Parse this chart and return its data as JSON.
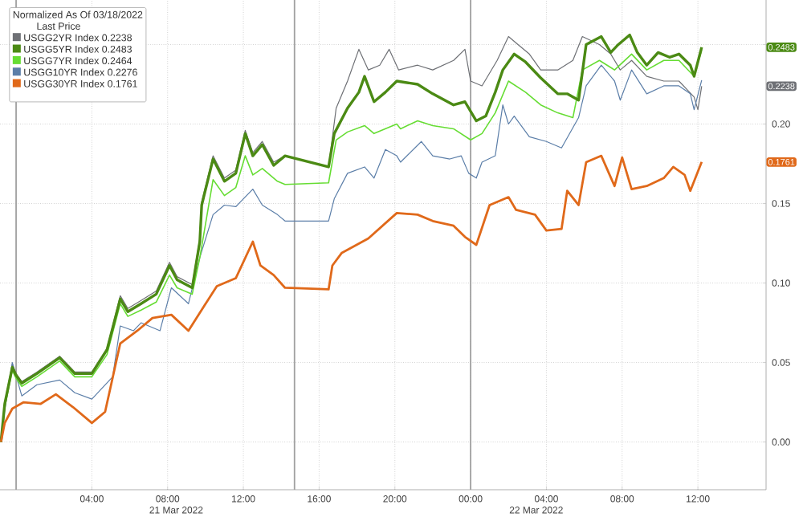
{
  "chart_data": {
    "type": "line",
    "legend_title": "Normalized As Of 03/18/2022",
    "annotations": [
      "Last Price",
      "21 Mar 2022",
      "22 Mar 2022",
      "0.2483",
      "0.2238",
      "0.1761"
    ],
    "series": [
      {
        "name": "USGG2YR Index  0.2238",
        "color": "#6e7075",
        "x": [
          "2022-03-20T23:12",
          "2022-03-20T23:24",
          "2022-03-20T23:48",
          "2022-03-21T00:00",
          "2022-03-21T00:18",
          "2022-03-21T01:06",
          "2022-03-21T02:18",
          "2022-03-21T03:06",
          "2022-03-21T04:00",
          "2022-03-21T04:48",
          "2022-03-21T05:30",
          "2022-03-21T05:54",
          "2022-03-21T06:36",
          "2022-03-21T07:24",
          "2022-03-21T08:06",
          "2022-03-21T08:30",
          "2022-03-21T09:18",
          "2022-03-21T09:42",
          "2022-03-21T09:48",
          "2022-03-21T10:24",
          "2022-03-21T11:00",
          "2022-03-21T11:36",
          "2022-03-21T12:06",
          "2022-03-21T12:30",
          "2022-03-21T13:00",
          "2022-03-21T13:36",
          "2022-03-21T14:12",
          "2022-03-21T16:30",
          "2022-03-21T16:54",
          "2022-03-21T17:30",
          "2022-03-21T18:06",
          "2022-03-21T18:36",
          "2022-03-21T19:12",
          "2022-03-21T19:42",
          "2022-03-21T20:12",
          "2022-03-21T21:12",
          "2022-03-21T22:00",
          "2022-03-21T23:06",
          "2022-03-21T23:42",
          "2022-03-22T00:00",
          "2022-03-22T00:36",
          "2022-03-22T01:24",
          "2022-03-22T02:00",
          "2022-03-22T02:30",
          "2022-03-22T03:06",
          "2022-03-22T03:42",
          "2022-03-22T04:36",
          "2022-03-22T05:24",
          "2022-03-22T05:54",
          "2022-03-22T06:48",
          "2022-03-22T07:24",
          "2022-03-22T07:54",
          "2022-03-22T08:30",
          "2022-03-22T09:18",
          "2022-03-22T10:12",
          "2022-03-22T11:00",
          "2022-03-22T11:48",
          "2022-03-22T12:00",
          "2022-03-22T12:12"
        ],
        "values": [
          0.0,
          0.025,
          0.049,
          0.043,
          0.038,
          0.044,
          0.054,
          0.044,
          0.044,
          0.059,
          0.092,
          0.084,
          0.089,
          0.095,
          0.113,
          0.104,
          0.099,
          0.128,
          0.151,
          0.18,
          0.166,
          0.171,
          0.196,
          0.182,
          0.189,
          0.176,
          0.18,
          0.173,
          0.21,
          0.227,
          0.247,
          0.234,
          0.237,
          0.247,
          0.234,
          0.237,
          0.234,
          0.24,
          0.247,
          0.227,
          0.224,
          0.24,
          0.255,
          0.25,
          0.244,
          0.234,
          0.234,
          0.24,
          0.255,
          0.25,
          0.244,
          0.234,
          0.24,
          0.23,
          0.227,
          0.227,
          0.217,
          0.209,
          0.2238
        ]
      },
      {
        "name": "USGG5YR Index  0.2483",
        "color": "#4b8a14",
        "x": [
          "2022-03-20T23:12",
          "2022-03-20T23:24",
          "2022-03-20T23:48",
          "2022-03-21T00:00",
          "2022-03-21T00:18",
          "2022-03-21T01:06",
          "2022-03-21T02:18",
          "2022-03-21T03:06",
          "2022-03-21T04:00",
          "2022-03-21T04:48",
          "2022-03-21T05:30",
          "2022-03-21T05:54",
          "2022-03-21T06:36",
          "2022-03-21T07:24",
          "2022-03-21T08:06",
          "2022-03-21T08:30",
          "2022-03-21T09:18",
          "2022-03-21T09:42",
          "2022-03-21T09:48",
          "2022-03-21T10:24",
          "2022-03-21T11:00",
          "2022-03-21T11:36",
          "2022-03-21T12:06",
          "2022-03-21T12:30",
          "2022-03-21T13:00",
          "2022-03-21T13:36",
          "2022-03-21T14:12",
          "2022-03-21T16:30",
          "2022-03-21T16:48",
          "2022-03-21T17:30",
          "2022-03-21T18:06",
          "2022-03-21T18:24",
          "2022-03-21T18:54",
          "2022-03-21T19:30",
          "2022-03-21T20:06",
          "2022-03-21T21:12",
          "2022-03-21T22:00",
          "2022-03-21T23:06",
          "2022-03-21T23:42",
          "2022-03-22T00:18",
          "2022-03-22T00:48",
          "2022-03-22T01:18",
          "2022-03-22T01:42",
          "2022-03-22T02:18",
          "2022-03-22T02:54",
          "2022-03-22T03:42",
          "2022-03-22T04:36",
          "2022-03-22T05:06",
          "2022-03-22T05:42",
          "2022-03-22T06:06",
          "2022-03-22T06:54",
          "2022-03-22T07:24",
          "2022-03-22T07:48",
          "2022-03-22T08:24",
          "2022-03-22T08:48",
          "2022-03-22T09:18",
          "2022-03-22T09:54",
          "2022-03-22T10:30",
          "2022-03-22T11:00",
          "2022-03-22T11:36",
          "2022-03-22T11:48",
          "2022-03-22T12:12"
        ],
        "values": [
          0.0,
          0.024,
          0.047,
          0.042,
          0.037,
          0.043,
          0.053,
          0.043,
          0.043,
          0.058,
          0.09,
          0.082,
          0.087,
          0.093,
          0.111,
          0.102,
          0.097,
          0.126,
          0.149,
          0.178,
          0.164,
          0.169,
          0.194,
          0.18,
          0.187,
          0.174,
          0.18,
          0.173,
          0.194,
          0.21,
          0.22,
          0.23,
          0.214,
          0.22,
          0.227,
          0.225,
          0.219,
          0.212,
          0.214,
          0.202,
          0.205,
          0.22,
          0.234,
          0.244,
          0.239,
          0.229,
          0.219,
          0.219,
          0.215,
          0.25,
          0.255,
          0.245,
          0.25,
          0.256,
          0.245,
          0.237,
          0.245,
          0.242,
          0.244,
          0.237,
          0.23,
          0.2483
        ]
      },
      {
        "name": "USGG7YR Index  0.2464",
        "color": "#66dd33",
        "x": [
          "2022-03-20T23:12",
          "2022-03-20T23:24",
          "2022-03-20T23:48",
          "2022-03-21T00:00",
          "2022-03-21T00:18",
          "2022-03-21T01:06",
          "2022-03-21T02:18",
          "2022-03-21T03:06",
          "2022-03-21T04:00",
          "2022-03-21T04:48",
          "2022-03-21T05:30",
          "2022-03-21T05:54",
          "2022-03-21T06:36",
          "2022-03-21T07:24",
          "2022-03-21T08:06",
          "2022-03-21T08:30",
          "2022-03-21T09:18",
          "2022-03-21T09:42",
          "2022-03-21T10:24",
          "2022-03-21T11:00",
          "2022-03-21T11:36",
          "2022-03-21T12:06",
          "2022-03-21T12:30",
          "2022-03-21T13:00",
          "2022-03-21T13:48",
          "2022-03-21T14:12",
          "2022-03-21T16:30",
          "2022-03-21T16:54",
          "2022-03-21T17:30",
          "2022-03-21T18:24",
          "2022-03-21T18:54",
          "2022-03-21T20:06",
          "2022-03-21T20:18",
          "2022-03-21T21:12",
          "2022-03-21T22:00",
          "2022-03-21T23:06",
          "2022-03-22T00:00",
          "2022-03-22T00:36",
          "2022-03-22T01:18",
          "2022-03-22T02:00",
          "2022-03-22T02:54",
          "2022-03-22T03:42",
          "2022-03-22T04:36",
          "2022-03-22T05:24",
          "2022-03-22T05:54",
          "2022-03-22T06:48",
          "2022-03-22T07:36",
          "2022-03-22T08:30",
          "2022-03-22T09:18",
          "2022-03-22T10:12",
          "2022-03-22T11:00",
          "2022-03-22T11:48",
          "2022-03-22T12:12"
        ],
        "values": [
          0.0,
          0.022,
          0.045,
          0.04,
          0.035,
          0.041,
          0.051,
          0.041,
          0.041,
          0.055,
          0.087,
          0.079,
          0.083,
          0.088,
          0.105,
          0.097,
          0.093,
          0.116,
          0.165,
          0.155,
          0.16,
          0.18,
          0.168,
          0.172,
          0.164,
          0.162,
          0.163,
          0.19,
          0.195,
          0.199,
          0.194,
          0.2,
          0.197,
          0.202,
          0.199,
          0.197,
          0.19,
          0.194,
          0.207,
          0.227,
          0.22,
          0.212,
          0.207,
          0.204,
          0.234,
          0.24,
          0.234,
          0.244,
          0.234,
          0.24,
          0.24,
          0.23,
          0.2464
        ]
      },
      {
        "name": "USGG10YR Index  0.2276",
        "color": "#5b7ea8",
        "x": [
          "2022-03-20T23:12",
          "2022-03-20T23:24",
          "2022-03-20T23:48",
          "2022-03-21T00:18",
          "2022-03-21T01:06",
          "2022-03-21T02:18",
          "2022-03-21T03:06",
          "2022-03-21T04:00",
          "2022-03-21T05:06",
          "2022-03-21T05:30",
          "2022-03-21T06:12",
          "2022-03-21T06:36",
          "2022-03-21T07:36",
          "2022-03-21T08:12",
          "2022-03-21T09:06",
          "2022-03-21T09:42",
          "2022-03-21T10:24",
          "2022-03-21T11:00",
          "2022-03-21T11:36",
          "2022-03-21T12:30",
          "2022-03-21T13:00",
          "2022-03-21T13:48",
          "2022-03-21T14:12",
          "2022-03-21T16:30",
          "2022-03-21T16:48",
          "2022-03-21T17:30",
          "2022-03-21T18:24",
          "2022-03-21T18:54",
          "2022-03-21T19:30",
          "2022-03-21T20:06",
          "2022-03-21T20:18",
          "2022-03-21T21:24",
          "2022-03-21T22:00",
          "2022-03-21T22:54",
          "2022-03-21T23:30",
          "2022-03-21T23:54",
          "2022-03-22T00:18",
          "2022-03-22T00:36",
          "2022-03-22T01:18",
          "2022-03-22T01:42",
          "2022-03-22T02:00",
          "2022-03-22T02:18",
          "2022-03-22T03:06",
          "2022-03-22T04:00",
          "2022-03-22T04:48",
          "2022-03-22T05:42",
          "2022-03-22T06:06",
          "2022-03-22T06:54",
          "2022-03-22T07:36",
          "2022-03-22T07:54",
          "2022-03-22T08:30",
          "2022-03-22T09:18",
          "2022-03-22T10:12",
          "2022-03-22T11:00",
          "2022-03-22T11:36",
          "2022-03-22T11:48",
          "2022-03-22T12:12"
        ],
        "values": [
          0.0,
          0.02,
          0.05,
          0.029,
          0.036,
          0.039,
          0.031,
          0.027,
          0.041,
          0.073,
          0.07,
          0.075,
          0.07,
          0.097,
          0.087,
          0.116,
          0.143,
          0.149,
          0.148,
          0.159,
          0.149,
          0.143,
          0.139,
          0.139,
          0.153,
          0.169,
          0.173,
          0.166,
          0.184,
          0.18,
          0.176,
          0.189,
          0.18,
          0.178,
          0.18,
          0.169,
          0.166,
          0.176,
          0.18,
          0.212,
          0.2,
          0.205,
          0.192,
          0.189,
          0.185,
          0.204,
          0.224,
          0.237,
          0.227,
          0.215,
          0.234,
          0.219,
          0.224,
          0.224,
          0.219,
          0.209,
          0.2276
        ]
      },
      {
        "name": "USGG30YR Index  0.1761",
        "color": "#e0691a",
        "x": [
          "2022-03-20T23:12",
          "2022-03-20T23:24",
          "2022-03-20T23:48",
          "2022-03-21T00:24",
          "2022-03-21T01:18",
          "2022-03-21T02:06",
          "2022-03-21T03:00",
          "2022-03-21T04:00",
          "2022-03-21T04:42",
          "2022-03-21T05:30",
          "2022-03-21T06:24",
          "2022-03-21T07:12",
          "2022-03-21T08:12",
          "2022-03-21T09:06",
          "2022-03-21T09:54",
          "2022-03-21T10:36",
          "2022-03-21T11:36",
          "2022-03-21T12:30",
          "2022-03-21T12:54",
          "2022-03-21T13:36",
          "2022-03-21T14:12",
          "2022-03-21T16:30",
          "2022-03-21T16:42",
          "2022-03-21T17:12",
          "2022-03-21T18:36",
          "2022-03-21T20:06",
          "2022-03-21T21:12",
          "2022-03-21T22:00",
          "2022-03-21T23:06",
          "2022-03-21T23:42",
          "2022-03-22T00:18",
          "2022-03-22T01:00",
          "2022-03-22T02:00",
          "2022-03-22T02:24",
          "2022-03-22T03:24",
          "2022-03-22T04:00",
          "2022-03-22T04:48",
          "2022-03-22T05:06",
          "2022-03-22T05:42",
          "2022-03-22T06:06",
          "2022-03-22T06:54",
          "2022-03-22T07:36",
          "2022-03-22T08:00",
          "2022-03-22T08:30",
          "2022-03-22T09:18",
          "2022-03-22T10:12",
          "2022-03-22T10:42",
          "2022-03-22T11:18",
          "2022-03-22T11:36",
          "2022-03-22T12:12"
        ],
        "values": [
          0.0,
          0.012,
          0.021,
          0.025,
          0.024,
          0.03,
          0.022,
          0.012,
          0.019,
          0.062,
          0.07,
          0.078,
          0.08,
          0.07,
          0.085,
          0.098,
          0.103,
          0.126,
          0.111,
          0.105,
          0.097,
          0.096,
          0.111,
          0.119,
          0.128,
          0.144,
          0.143,
          0.139,
          0.136,
          0.129,
          0.124,
          0.149,
          0.154,
          0.146,
          0.143,
          0.133,
          0.134,
          0.158,
          0.149,
          0.176,
          0.18,
          0.161,
          0.179,
          0.159,
          0.161,
          0.166,
          0.173,
          0.168,
          0.158,
          0.1761
        ]
      }
    ],
    "xlim": [
      "2022-03-20T23:09",
      "2022-03-22T15:36"
    ],
    "ylim": [
      -0.03,
      0.278
    ],
    "xticks": [
      {
        "value": "2022-03-21T04:00",
        "label": "04:00"
      },
      {
        "value": "2022-03-21T08:00",
        "label": "08:00"
      },
      {
        "value": "2022-03-21T12:00",
        "label": "12:00"
      },
      {
        "value": "2022-03-21T16:00",
        "label": "16:00"
      },
      {
        "value": "2022-03-21T20:00",
        "label": "20:00"
      },
      {
        "value": "2022-03-22T00:00",
        "label": "00:00"
      },
      {
        "value": "2022-03-22T04:00",
        "label": "04:00"
      },
      {
        "value": "2022-03-22T08:00",
        "label": "08:00"
      },
      {
        "value": "2022-03-22T12:00",
        "label": "12:00"
      }
    ],
    "yticks": [
      {
        "value": 0,
        "label": "0.00"
      },
      {
        "value": 0.05,
        "label": "0.05"
      },
      {
        "value": 0.1,
        "label": "0.10"
      },
      {
        "value": 0.15,
        "label": "0.15"
      },
      {
        "value": 0.2,
        "label": "0.20"
      },
      {
        "value": 0.25,
        "label": null
      }
    ],
    "ref_lines": [
      {
        "axis": "x",
        "value": "2022-03-21T00:00",
        "color": "#a0a0a0"
      },
      {
        "axis": "x",
        "value": "2022-03-21T14:42",
        "color": "#a0a0a0"
      },
      {
        "axis": "x",
        "value": "2022-03-22T00:00",
        "color": "#a0a0a0"
      }
    ],
    "grid": true,
    "legend": "top left",
    "line_style": "solid",
    "marker": "none"
  }
}
